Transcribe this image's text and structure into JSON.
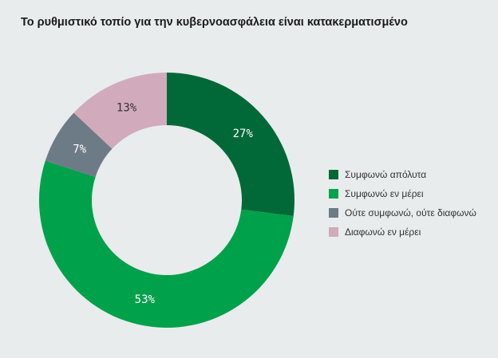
{
  "chart_data": {
    "type": "donut",
    "title": "Το ρυθμιστικό τοπίο για την κυβερνοασφάλεια είναι κατακερματισμένο",
    "categories": [
      "Συμφωνώ απόλυτα",
      "Συμφωνώ εν μέρει",
      "Ούτε συμφωνώ, ούτε διαφωνώ",
      "Διαφωνώ εν μέρει"
    ],
    "values": [
      27,
      53,
      7,
      13
    ],
    "data_labels": [
      "27%",
      "53%",
      "7%",
      "13%"
    ],
    "colors": [
      "#006937",
      "#00a14b",
      "#6d7b87",
      "#d1aabb"
    ],
    "label_colors": [
      "#ffffff",
      "#ffffff",
      "#ffffff",
      "#333333"
    ],
    "legend_position": "right",
    "start_angle": "12 o'clock",
    "direction": "clockwise"
  }
}
